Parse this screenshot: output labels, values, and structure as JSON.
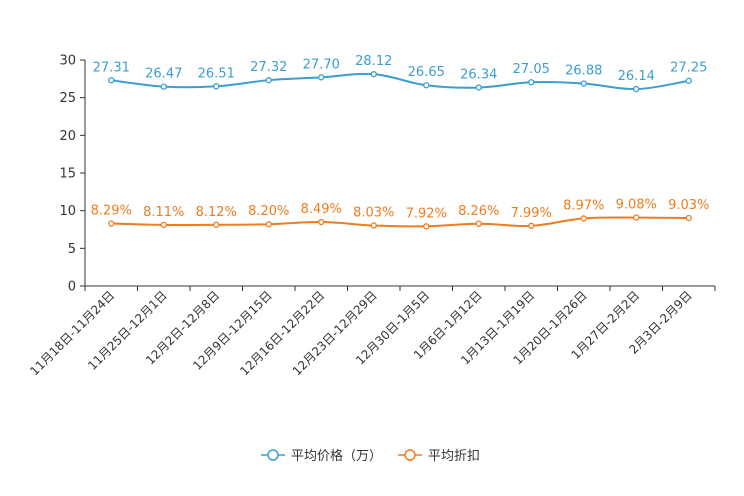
{
  "chart_data": {
    "type": "line",
    "categories": [
      "11月18日-11月24日",
      "11月25日-12月1日",
      "12月2日-12月8日",
      "12月9日-12月15日",
      "12月16日-12月22日",
      "12月23日-12月29日",
      "12月30日-1月5日",
      "1月6日-1月12日",
      "1月13日-1月19日",
      "1月20日-1月26日",
      "1月27日-2月2日",
      "2月3日-2月9日"
    ],
    "series": [
      {
        "name": "平均价格（万）",
        "color": "#3a9fd0",
        "values": [
          27.31,
          26.47,
          26.51,
          27.32,
          27.7,
          28.12,
          26.65,
          26.34,
          27.05,
          26.88,
          26.14,
          27.25
        ],
        "labels": [
          "27.31",
          "26.47",
          "26.51",
          "27.32",
          "27.70",
          "28.12",
          "26.65",
          "26.34",
          "27.05",
          "26.88",
          "26.14",
          "27.25"
        ]
      },
      {
        "name": "平均折扣",
        "color": "#f07c1e",
        "values": [
          8.29,
          8.11,
          8.12,
          8.2,
          8.49,
          8.03,
          7.92,
          8.26,
          7.99,
          8.97,
          9.08,
          9.03
        ],
        "labels": [
          "8.29%",
          "8.11%",
          "8.12%",
          "8.20%",
          "8.49%",
          "8.03%",
          "7.92%",
          "8.26%",
          "7.99%",
          "8.97%",
          "9.08%",
          "9.03%"
        ]
      }
    ],
    "y_ticks": [
      "0",
      "5",
      "10",
      "15",
      "20",
      "25",
      "30"
    ],
    "ylim": [
      0,
      30
    ],
    "title": "",
    "xlabel": "",
    "ylabel": "",
    "legend": "bottom"
  }
}
